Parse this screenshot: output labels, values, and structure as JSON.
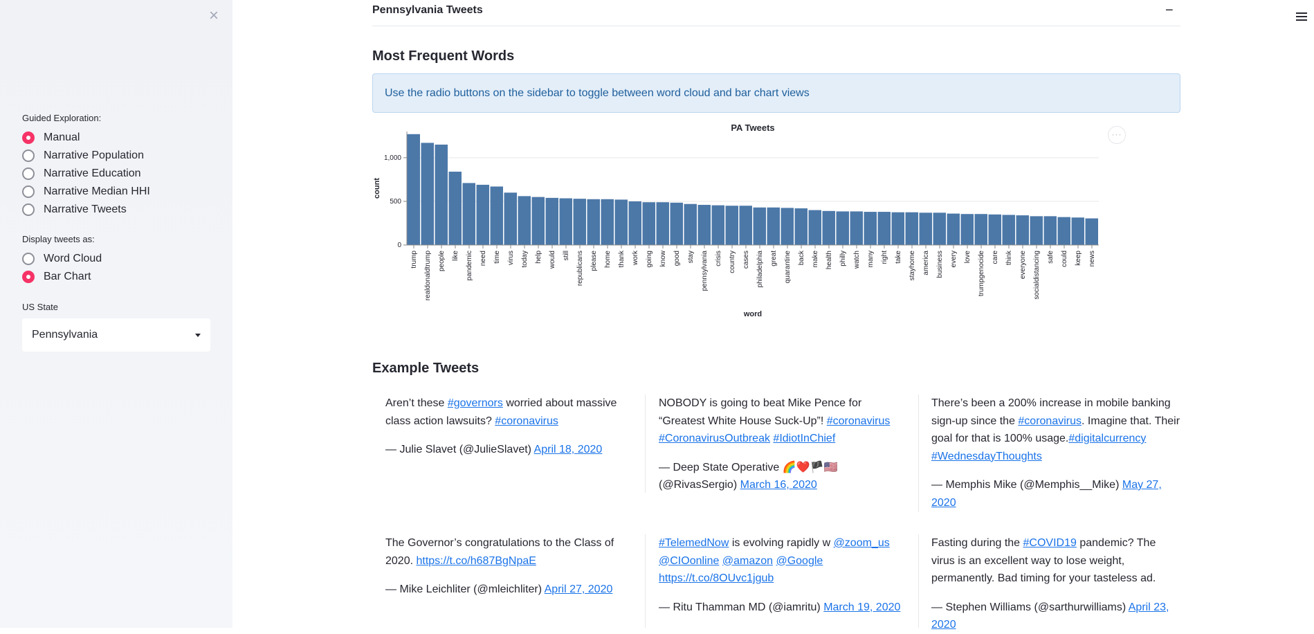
{
  "sidebar": {
    "guided_label": "Guided Exploration:",
    "guided_options": [
      "Manual",
      "Narrative Population",
      "Narrative Education",
      "Narrative Median HHI",
      "Narrative Tweets"
    ],
    "display_label": "Display tweets as:",
    "display_options": [
      "Word Cloud",
      "Bar Chart"
    ],
    "state_label": "US State",
    "state_value": "Pennsylvania"
  },
  "expander": {
    "title": "Pennsylvania Tweets",
    "toggle": "−"
  },
  "words_section": {
    "heading": "Most Frequent Words",
    "info": "Use the radio buttons on the sidebar to toggle between word cloud and bar chart views",
    "menu": "···"
  },
  "chart_data": {
    "type": "bar",
    "title": "PA Tweets",
    "xlabel": "word",
    "ylabel": "count",
    "ylim": [
      0,
      1300
    ],
    "yticks": [
      0,
      500,
      1000
    ],
    "ytick_labels": [
      "0",
      "500",
      "1,000"
    ],
    "bar_color": "#4c78a8",
    "categories": [
      "trump",
      "realdonaldtrump",
      "people",
      "like",
      "pandemic",
      "need",
      "time",
      "virus",
      "today",
      "help",
      "would",
      "still",
      "republicans",
      "please",
      "home",
      "thank",
      "work",
      "going",
      "know",
      "good",
      "stay",
      "pennsylvania",
      "crisis",
      "country",
      "cases",
      "philadelphia",
      "great",
      "quarantine",
      "back",
      "make",
      "health",
      "philly",
      "watch",
      "many",
      "right",
      "take",
      "stayhome",
      "america",
      "business",
      "every",
      "love",
      "trumpgenocide",
      "care",
      "think",
      "everyone",
      "socialdistancing",
      "safe",
      "could",
      "keep",
      "news"
    ],
    "values": [
      1270,
      1170,
      1150,
      840,
      710,
      690,
      670,
      600,
      560,
      550,
      540,
      535,
      530,
      525,
      525,
      520,
      500,
      490,
      490,
      485,
      470,
      460,
      455,
      450,
      450,
      430,
      430,
      425,
      420,
      400,
      390,
      385,
      385,
      380,
      380,
      375,
      375,
      370,
      370,
      360,
      355,
      355,
      350,
      345,
      340,
      330,
      330,
      320,
      315,
      305
    ]
  },
  "tweets_section": {
    "heading": "Example Tweets",
    "tweets": [
      {
        "segments": [
          {
            "t": "Aren’t these "
          },
          {
            "t": "#governors",
            "link": true
          },
          {
            "t": " worried about massive class action lawsuits? "
          },
          {
            "t": "#coronavirus",
            "link": true
          }
        ],
        "author": "— Julie Slavet (@JulieSlavet) ",
        "date": "April 18, 2020"
      },
      {
        "segments": [
          {
            "t": "NOBODY is going to beat Mike Pence for “Greatest White House Suck-Up”! "
          },
          {
            "t": "#coronavirus",
            "link": true
          },
          {
            "t": " "
          },
          {
            "t": "#CoronavirusOutbreak",
            "link": true
          },
          {
            "t": " "
          },
          {
            "t": "#IdiotInChief",
            "link": true
          }
        ],
        "author": "— Deep State Operative 🌈❤️🏴🇺🇸 (@RivasSergio) ",
        "date": "March 16, 2020"
      },
      {
        "segments": [
          {
            "t": "There’s been a 200% increase in mobile banking sign-up since the "
          },
          {
            "t": "#coronavirus",
            "link": true
          },
          {
            "t": ". Imagine that. Their goal for that is 100% usage."
          },
          {
            "t": "#digitalcurrency",
            "link": true
          },
          {
            "t": " "
          },
          {
            "t": "#WednesdayThoughts",
            "link": true
          }
        ],
        "author": "— Memphis Mike (@Memphis__Mike) ",
        "date": "May 27, 2020"
      },
      {
        "segments": [
          {
            "t": "The Governor’s congratulations to the Class of 2020. "
          },
          {
            "t": "https://t.co/h687BgNpaE",
            "link": true
          }
        ],
        "author": "— Mike Leichliter (@mleichliter) ",
        "date": "April 27, 2020"
      },
      {
        "segments": [
          {
            "t": "#TelemedNow",
            "link": true
          },
          {
            "t": " is evolving rapidly w "
          },
          {
            "t": "@zoom_us",
            "link": true
          },
          {
            "t": " "
          },
          {
            "t": "@CIOonline",
            "link": true
          },
          {
            "t": " "
          },
          {
            "t": "@amazon",
            "link": true
          },
          {
            "t": " "
          },
          {
            "t": "@Google",
            "link": true
          },
          {
            "t": " "
          },
          {
            "t": "https://t.co/8OUvc1jgub",
            "link": true
          }
        ],
        "author": "— Ritu Thamman MD (@iamritu) ",
        "date": "March 19, 2020"
      },
      {
        "segments": [
          {
            "t": "Fasting during the "
          },
          {
            "t": "#COVID19",
            "link": true
          },
          {
            "t": " pandemic? The virus is an excellent way to lose weight, permanently. Bad timing for your tasteless ad."
          }
        ],
        "author": "— Stephen Williams (@sarthurwilliams) ",
        "date": "April 23, 2020"
      }
    ]
  }
}
